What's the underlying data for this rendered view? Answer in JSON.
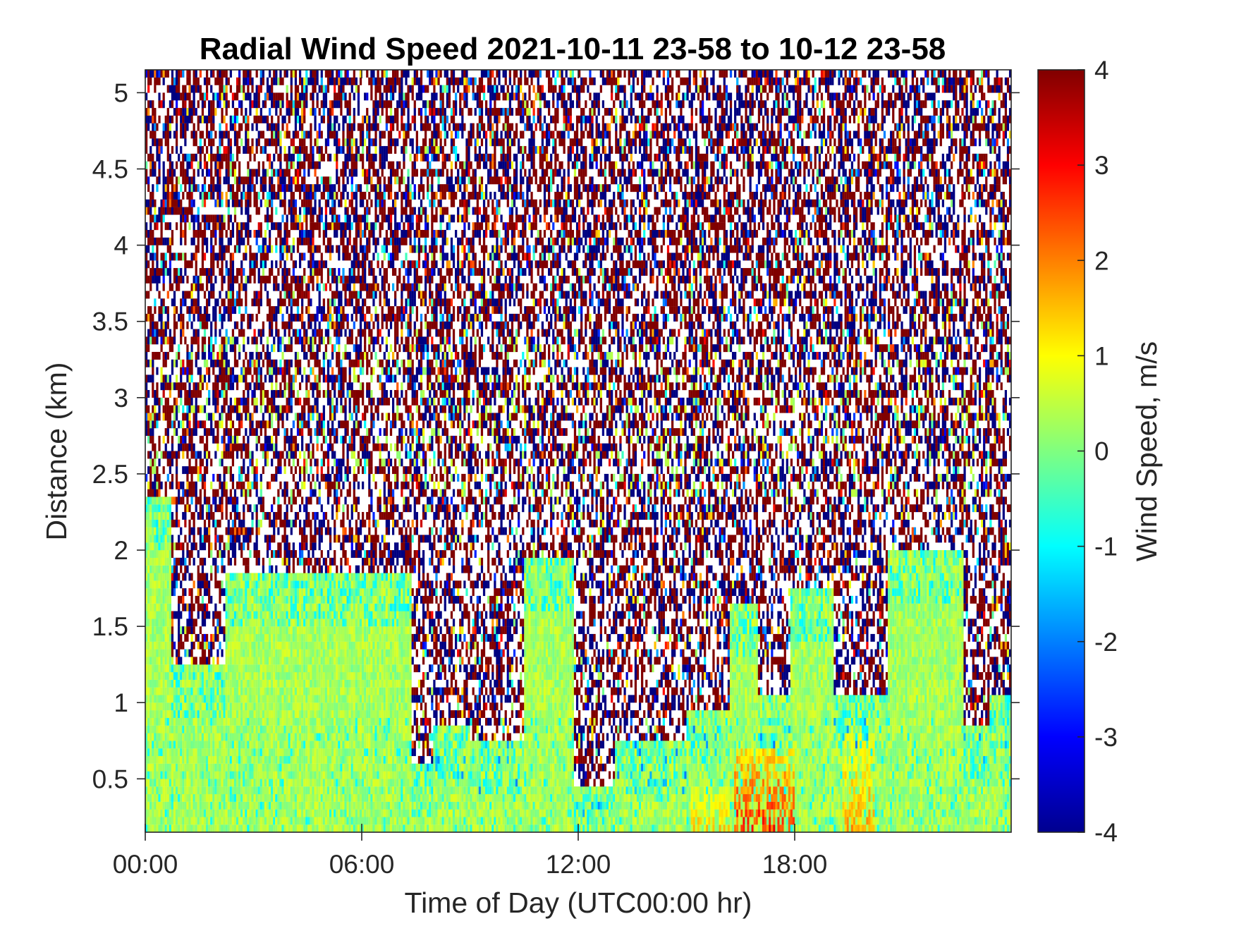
{
  "chart_data": {
    "type": "heatmap",
    "title": "Radial Wind Speed 2021-10-11 23-58 to 10-12 23-58",
    "xlabel": "Time of Day (UTC00:00 hr)",
    "ylabel": "Distance (km)",
    "colorbar_label": "Wind Speed, m/s",
    "colormap": "jet",
    "x_range_hours": [
      0,
      24
    ],
    "ylim": [
      0.15,
      5.15
    ],
    "clim": [
      -4,
      4
    ],
    "x_ticks": [
      {
        "value": 0,
        "label": "00:00"
      },
      {
        "value": 6,
        "label": "06:00"
      },
      {
        "value": 12,
        "label": "12:00"
      },
      {
        "value": 18,
        "label": "18:00"
      }
    ],
    "y_ticks": [
      {
        "value": 0.5,
        "label": "0.5"
      },
      {
        "value": 1,
        "label": "1"
      },
      {
        "value": 1.5,
        "label": "1.5"
      },
      {
        "value": 2,
        "label": "2"
      },
      {
        "value": 2.5,
        "label": "2.5"
      },
      {
        "value": 3,
        "label": "3"
      },
      {
        "value": 3.5,
        "label": "3.5"
      },
      {
        "value": 4,
        "label": "4"
      },
      {
        "value": 4.5,
        "label": "4.5"
      },
      {
        "value": 5,
        "label": "5"
      }
    ],
    "colorbar_ticks": [
      {
        "value": 4,
        "label": "4"
      },
      {
        "value": 3,
        "label": "3"
      },
      {
        "value": 2,
        "label": "2"
      },
      {
        "value": 1,
        "label": "1"
      },
      {
        "value": 0,
        "label": "0"
      },
      {
        "value": -1,
        "label": "-1"
      },
      {
        "value": -2,
        "label": "-2"
      },
      {
        "value": -3,
        "label": "-3"
      },
      {
        "value": -4,
        "label": "-4"
      }
    ],
    "valid_signal_top_km": [
      {
        "start": 0.0,
        "end": 0.7,
        "top": 2.35
      },
      {
        "start": 0.7,
        "end": 2.2,
        "top": 1.25
      },
      {
        "start": 2.2,
        "end": 7.4,
        "top": 1.85
      },
      {
        "start": 7.4,
        "end": 8.0,
        "top": 0.6
      },
      {
        "start": 8.0,
        "end": 9.0,
        "top": 0.85
      },
      {
        "start": 9.0,
        "end": 10.5,
        "top": 0.75
      },
      {
        "start": 10.5,
        "end": 11.9,
        "top": 1.95
      },
      {
        "start": 11.9,
        "end": 13.0,
        "top": 0.45
      },
      {
        "start": 13.0,
        "end": 15.0,
        "top": 0.75
      },
      {
        "start": 15.0,
        "end": 16.2,
        "top": 0.95
      },
      {
        "start": 16.2,
        "end": 17.0,
        "top": 1.65
      },
      {
        "start": 17.0,
        "end": 17.9,
        "top": 1.05
      },
      {
        "start": 17.9,
        "end": 19.1,
        "top": 1.75
      },
      {
        "start": 19.1,
        "end": 20.6,
        "top": 1.05
      },
      {
        "start": 20.6,
        "end": 22.7,
        "top": 2.0
      },
      {
        "start": 22.7,
        "end": 23.4,
        "top": 0.85
      },
      {
        "start": 23.4,
        "end": 24.0,
        "top": 1.05
      }
    ],
    "warm_updraft_regions": [
      {
        "start": 16.3,
        "end": 18.0,
        "bottom": 0.15,
        "top": 0.7,
        "value": 2.5
      },
      {
        "start": 19.3,
        "end": 20.2,
        "bottom": 0.15,
        "top": 0.8,
        "value": 1.5
      },
      {
        "start": 15.1,
        "end": 16.2,
        "bottom": 0.15,
        "top": 0.45,
        "value": 1.2
      }
    ],
    "baseline_values_m_s": {
      "near_surface": 0.3,
      "noise_above_signal": "random, saturated at +4 / -4"
    }
  }
}
